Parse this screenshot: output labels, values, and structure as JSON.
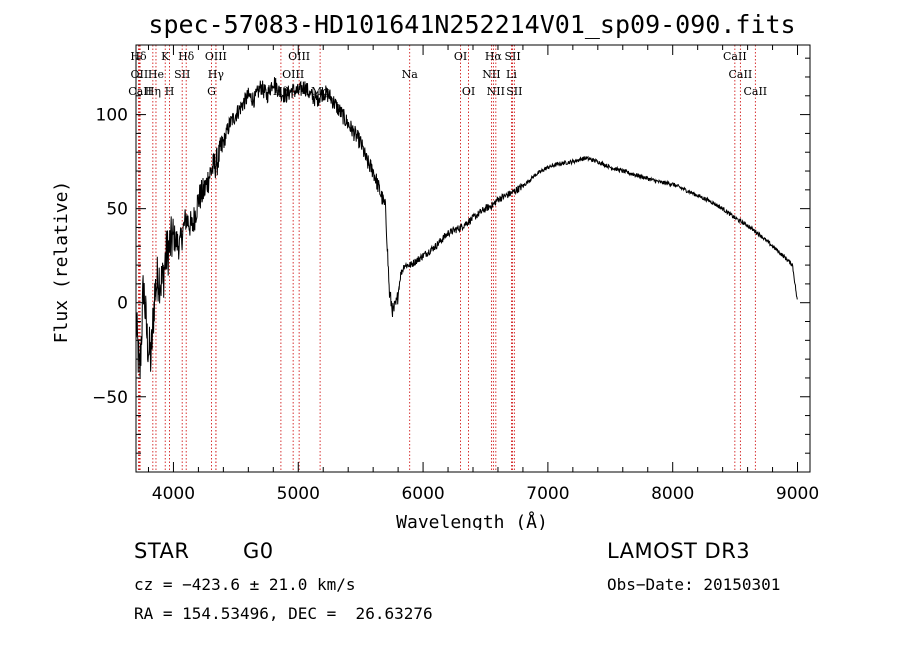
{
  "chart_data": {
    "type": "line",
    "title": "spec-57083-HD101641N252214V01_sp09-090.fits",
    "xlabel": "Wavelength (Å)",
    "ylabel": "Flux (relative)",
    "xlim": [
      3700,
      9100
    ],
    "ylim": [
      -90,
      137
    ],
    "xticks": [
      4000,
      5000,
      6000,
      7000,
      8000,
      9000
    ],
    "yticks": [
      -50,
      0,
      50,
      100
    ],
    "series": [
      {
        "name": "spectrum",
        "x": [
          3700,
          3730,
          3760,
          3790,
          3820,
          3850,
          3880,
          3910,
          3940,
          3970,
          4000,
          4050,
          4100,
          4150,
          4200,
          4250,
          4300,
          4350,
          4400,
          4450,
          4500,
          4550,
          4600,
          4650,
          4700,
          4750,
          4800,
          4850,
          4900,
          4950,
          5000,
          5050,
          5100,
          5150,
          5200,
          5250,
          5300,
          5350,
          5400,
          5450,
          5500,
          5550,
          5600,
          5650,
          5700,
          5730,
          5760,
          5790,
          5820,
          5850,
          5900,
          6000,
          6100,
          6200,
          6300,
          6400,
          6500,
          6560,
          6600,
          6700,
          6800,
          6900,
          7000,
          7100,
          7200,
          7300,
          7400,
          7500,
          7600,
          7700,
          7800,
          7900,
          8000,
          8100,
          8200,
          8300,
          8400,
          8500,
          8600,
          8700,
          8800,
          8900,
          8960,
          9000
        ],
        "y": [
          -10,
          -40,
          10,
          -20,
          -30,
          5,
          15,
          10,
          25,
          30,
          35,
          30,
          45,
          40,
          55,
          60,
          70,
          75,
          85,
          95,
          100,
          105,
          110,
          108,
          115,
          110,
          118,
          112,
          110,
          113,
          112,
          115,
          110,
          108,
          112,
          110,
          105,
          100,
          95,
          90,
          85,
          75,
          70,
          60,
          50,
          5,
          -5,
          0,
          15,
          20,
          20,
          25,
          30,
          37,
          40,
          45,
          50,
          52,
          55,
          58,
          62,
          68,
          72,
          74,
          75,
          77,
          75,
          72,
          70,
          68,
          66,
          64,
          63,
          60,
          57,
          54,
          50,
          45,
          41,
          36,
          30,
          24,
          20,
          0
        ]
      }
    ],
    "line_markers": [
      {
        "label": "Hδ",
        "x": 3720,
        "row": 0
      },
      {
        "label": "K",
        "x": 3934,
        "row": 0
      },
      {
        "label": "Hδ",
        "x": 4102,
        "row": 0
      },
      {
        "label": "OIII",
        "x": 4340,
        "row": 0
      },
      {
        "label": "OIII",
        "x": 5007,
        "row": 0
      },
      {
        "label": "OI",
        "x": 6300,
        "row": 0
      },
      {
        "label": "Hα",
        "x": 6563,
        "row": 0
      },
      {
        "label": "SII",
        "x": 6717,
        "row": 0
      },
      {
        "label": "CaII",
        "x": 8498,
        "row": 0
      },
      {
        "label": "OII",
        "x": 3727,
        "row": 1
      },
      {
        "label": "He",
        "x": 3860,
        "row": 1
      },
      {
        "label": "SII",
        "x": 4070,
        "row": 1
      },
      {
        "label": "Hγ",
        "x": 4340,
        "row": 1
      },
      {
        "label": "OIII",
        "x": 4959,
        "row": 1
      },
      {
        "label": "Na",
        "x": 5893,
        "row": 1
      },
      {
        "label": "NII",
        "x": 6548,
        "row": 1
      },
      {
        "label": "Li",
        "x": 6708,
        "row": 1
      },
      {
        "label": "CaII",
        "x": 8542,
        "row": 1
      },
      {
        "label": "CaII",
        "x": 3733,
        "row": 2
      },
      {
        "label": "Hη",
        "x": 3835,
        "row": 2
      },
      {
        "label": "H",
        "x": 3969,
        "row": 2
      },
      {
        "label": "G",
        "x": 4305,
        "row": 2
      },
      {
        "label": "Hβ",
        "x": 4861,
        "row": 2
      },
      {
        "label": "Mg",
        "x": 5175,
        "row": 2
      },
      {
        "label": "OI",
        "x": 6364,
        "row": 2
      },
      {
        "label": "NII",
        "x": 6583,
        "row": 2
      },
      {
        "label": "SII",
        "x": 6731,
        "row": 2
      },
      {
        "label": "CaII",
        "x": 8662,
        "row": 2
      }
    ]
  },
  "info": {
    "object_class": "STAR",
    "subclass": "G0",
    "survey": "LAMOST DR3",
    "cz": "cz = −423.6 ± 21.0 km/s",
    "obs_date": "Obs−Date: 20150301",
    "radec": "RA = 154.53496, DEC =  26.63276"
  },
  "colors": {
    "marker_line": "#cc0000",
    "spectrum": "#000000",
    "axes": "#000000"
  }
}
